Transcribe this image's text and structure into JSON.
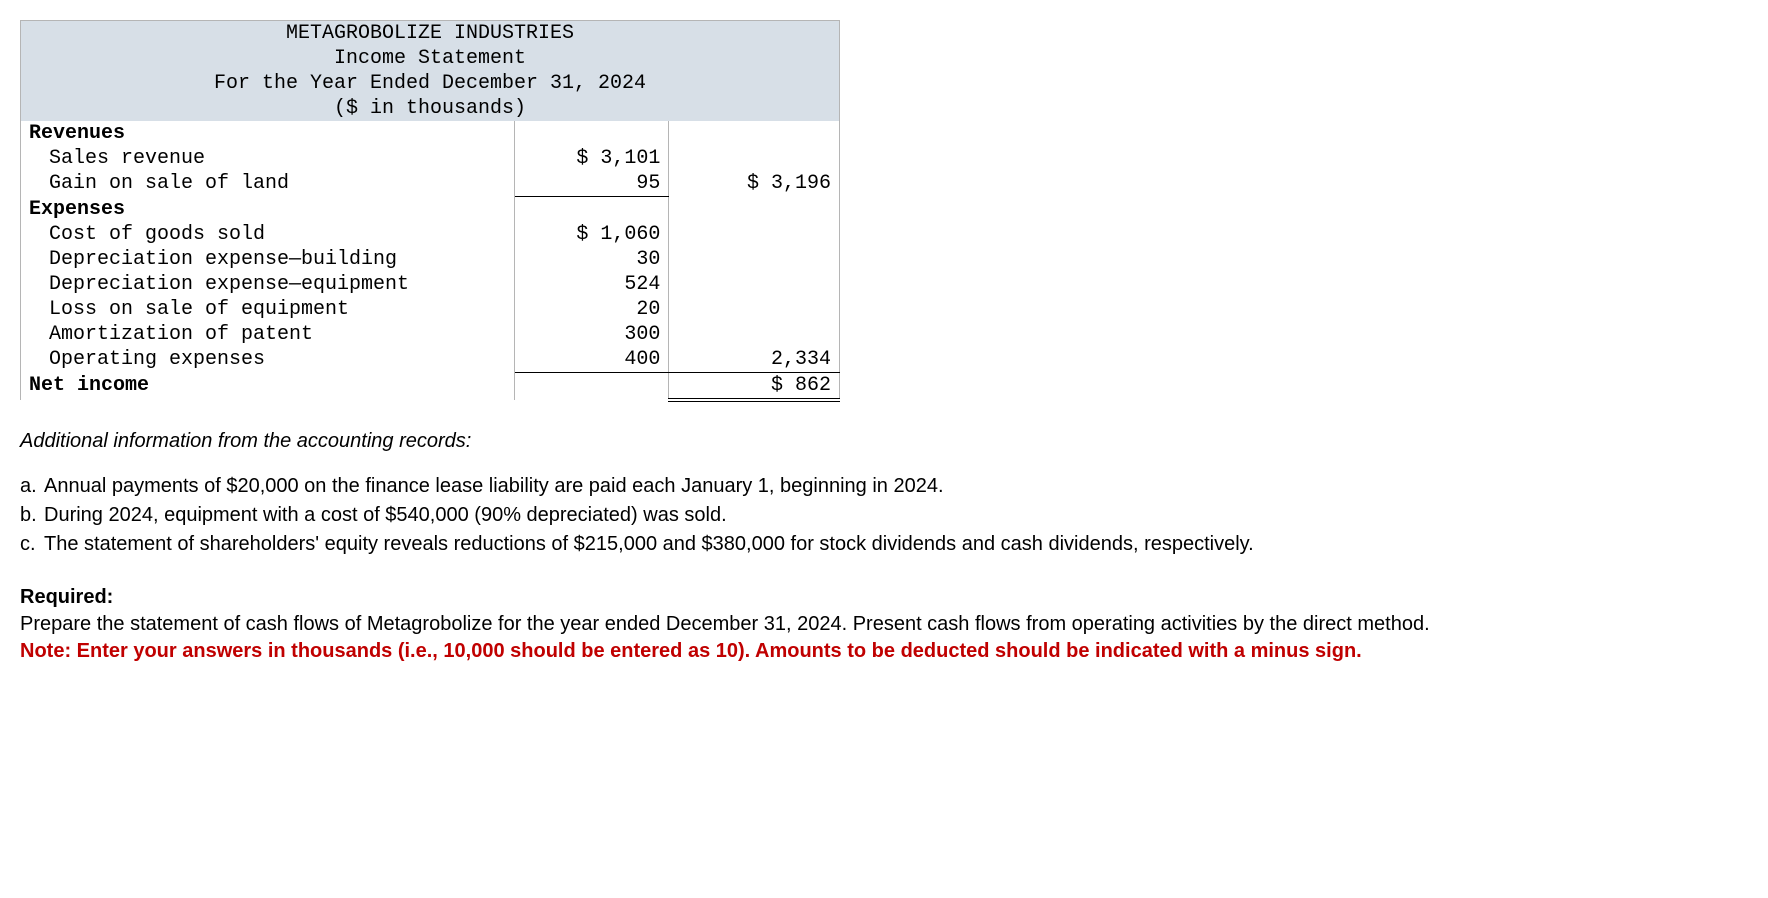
{
  "statement": {
    "company": "METAGROBOLIZE INDUSTRIES",
    "title": "Income Statement",
    "period": "For the Year Ended December 31, 2024",
    "units": "($ in thousands)",
    "sections": {
      "revenues_header": "Revenues",
      "sales_revenue_label": "Sales revenue",
      "sales_revenue_amount": "$ 3,101",
      "gain_on_sale_label": "Gain on sale of land",
      "gain_on_sale_amount": "95",
      "revenues_total": "$ 3,196",
      "expenses_header": "Expenses",
      "cogs_label": "Cost of goods sold",
      "cogs_amount": "$ 1,060",
      "dep_building_label": "Depreciation expense—building",
      "dep_building_amount": "30",
      "dep_equipment_label": "Depreciation expense—equipment",
      "dep_equipment_amount": "524",
      "loss_sale_equipment_label": "Loss on sale of equipment",
      "loss_sale_equipment_amount": "20",
      "amort_patent_label": "Amortization of patent",
      "amort_patent_amount": "300",
      "operating_expenses_label": "Operating expenses",
      "operating_expenses_amount": "400",
      "expenses_total": "2,334",
      "net_income_label": "Net income",
      "net_income_amount": "$ 862"
    }
  },
  "additional_info": {
    "heading": "Additional information from the accounting records:",
    "items": [
      {
        "letter": "a.",
        "text": "Annual payments of $20,000 on the finance lease liability are paid each January 1, beginning in 2024."
      },
      {
        "letter": "b.",
        "text": "During 2024, equipment with a cost of $540,000 (90% depreciated) was sold."
      },
      {
        "letter": "c.",
        "text": "The statement of shareholders' equity reveals reductions of $215,000 and $380,000 for stock dividends and cash dividends, respectively."
      }
    ]
  },
  "required": {
    "heading": "Required:",
    "text": "Prepare the statement of cash flows of Metagrobolize for the year ended December 31, 2024. Present cash flows from operating activities by the direct method.",
    "note": "Note: Enter your answers in thousands (i.e., 10,000 should be entered as 10). Amounts to be deducted should be indicated with a minus sign."
  },
  "colors": {
    "header_bg": "#d7dfe7",
    "border": "#b5b5b5",
    "text": "#000000",
    "note_red": "#c00000",
    "background": "#ffffff"
  }
}
